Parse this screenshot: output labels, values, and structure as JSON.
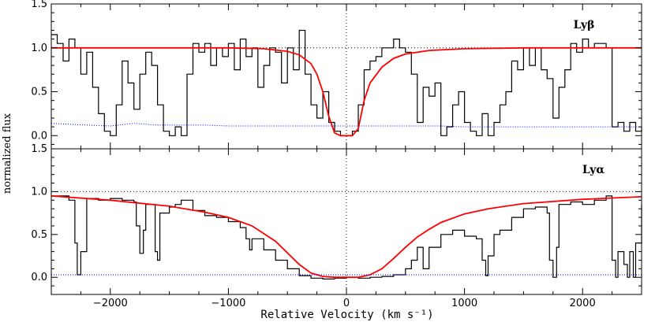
{
  "chart_data": [
    {
      "type": "line",
      "panel_label": "Lyβ",
      "xlim": [
        -2500,
        2500
      ],
      "ylim": [
        -0.15,
        1.5
      ],
      "y_ticks": [
        0.0,
        0.5,
        1.0,
        1.5
      ],
      "y_tick_labels": [
        "0.0",
        "0.5",
        "1.0",
        "1.5"
      ],
      "reference_lines": {
        "horizontal": 1.0,
        "vertical": 0
      },
      "series": [
        {
          "style": "black-histogram",
          "x": [
            -2500,
            -2450,
            -2400,
            -2350,
            -2300,
            -2250,
            -2200,
            -2150,
            -2100,
            -2050,
            -2000,
            -1950,
            -1900,
            -1850,
            -1800,
            -1750,
            -1700,
            -1650,
            -1600,
            -1550,
            -1500,
            -1450,
            -1400,
            -1350,
            -1300,
            -1250,
            -1200,
            -1150,
            -1100,
            -1050,
            -1000,
            -950,
            -900,
            -850,
            -800,
            -750,
            -700,
            -650,
            -600,
            -550,
            -500,
            -450,
            -400,
            -350,
            -300,
            -250,
            -200,
            -150,
            -100,
            -50,
            0,
            50,
            100,
            150,
            200,
            250,
            300,
            350,
            400,
            450,
            500,
            550,
            600,
            650,
            700,
            750,
            800,
            850,
            900,
            950,
            1000,
            1050,
            1100,
            1150,
            1200,
            1250,
            1300,
            1350,
            1400,
            1450,
            1500,
            1550,
            1600,
            1650,
            1700,
            1750,
            1800,
            1850,
            1900,
            1950,
            2000,
            2050,
            2100,
            2150,
            2200,
            2250,
            2300,
            2350,
            2400,
            2450,
            2500
          ],
          "y": [
            1.15,
            1.05,
            0.85,
            1.1,
            1.0,
            0.7,
            0.95,
            0.55,
            0.25,
            0.05,
            0.0,
            0.35,
            0.85,
            0.6,
            0.3,
            0.7,
            0.95,
            0.8,
            0.35,
            0.05,
            0.0,
            0.1,
            0.0,
            0.7,
            1.05,
            0.95,
            1.05,
            0.8,
            1.0,
            0.9,
            1.05,
            0.75,
            1.1,
            0.9,
            1.0,
            0.55,
            0.8,
            1.0,
            0.95,
            0.6,
            1.0,
            0.75,
            1.2,
            0.7,
            0.35,
            0.2,
            0.5,
            0.15,
            0.05,
            0.0,
            0.0,
            0.05,
            0.35,
            0.75,
            0.85,
            0.9,
            1.0,
            1.0,
            1.1,
            1.0,
            0.95,
            0.7,
            0.15,
            0.55,
            0.45,
            0.6,
            0.0,
            0.1,
            0.35,
            0.5,
            0.15,
            0.05,
            0.0,
            0.25,
            0.0,
            0.15,
            0.35,
            0.5,
            0.85,
            0.75,
            1.0,
            0.8,
            1.0,
            0.75,
            0.65,
            0.2,
            0.55,
            0.75,
            1.05,
            0.95,
            1.1,
            1.0,
            1.05,
            1.05,
            1.0,
            0.1,
            0.15,
            0.05,
            0.15,
            0.05,
            0.1
          ]
        },
        {
          "style": "red-fit",
          "x": [
            -2500,
            -1000,
            -700,
            -500,
            -400,
            -300,
            -250,
            -200,
            -150,
            -100,
            -50,
            0,
            50,
            100,
            150,
            200,
            300,
            400,
            500,
            700,
            1000,
            1500,
            2500
          ],
          "y": [
            1.0,
            1.0,
            0.99,
            0.96,
            0.92,
            0.82,
            0.7,
            0.5,
            0.22,
            0.03,
            0.0,
            0.0,
            0.0,
            0.08,
            0.4,
            0.6,
            0.78,
            0.88,
            0.93,
            0.97,
            0.99,
            1.0,
            1.0
          ]
        },
        {
          "style": "blue-error",
          "x": [
            -2500,
            -2200,
            -2000,
            -1800,
            -1600,
            -1400,
            -1200,
            -1000,
            -800,
            -600,
            -400,
            -200,
            0,
            200,
            400,
            600,
            800,
            1000,
            1200,
            1400,
            1600,
            1800,
            2000,
            2200,
            2500
          ],
          "y": [
            0.14,
            0.12,
            0.11,
            0.14,
            0.12,
            0.12,
            0.12,
            0.11,
            0.11,
            0.11,
            0.11,
            0.11,
            0.11,
            0.11,
            0.11,
            0.11,
            0.11,
            0.1,
            0.1,
            0.1,
            0.1,
            0.1,
            0.1,
            0.1,
            0.1
          ]
        }
      ]
    },
    {
      "type": "line",
      "panel_label": "Lyα",
      "xlim": [
        -2500,
        2500
      ],
      "ylim": [
        -0.2,
        1.5
      ],
      "y_ticks": [
        0.0,
        0.5,
        1.0,
        1.5
      ],
      "y_tick_labels": [
        "0.0",
        "0.5",
        "1.0",
        "1.5"
      ],
      "reference_lines": {
        "horizontal": 1.0,
        "vertical": 0
      },
      "series": [
        {
          "style": "black-histogram",
          "x": [
            -2500,
            -2400,
            -2350,
            -2300,
            -2280,
            -2250,
            -2200,
            -2100,
            -2000,
            -1900,
            -1800,
            -1780,
            -1750,
            -1720,
            -1700,
            -1650,
            -1620,
            -1600,
            -1580,
            -1500,
            -1450,
            -1400,
            -1300,
            -1200,
            -1100,
            -1000,
            -900,
            -850,
            -820,
            -800,
            -700,
            -600,
            -500,
            -400,
            -300,
            -200,
            -100,
            0,
            100,
            200,
            300,
            400,
            500,
            550,
            600,
            650,
            700,
            800,
            900,
            1000,
            1100,
            1150,
            1180,
            1200,
            1250,
            1300,
            1400,
            1500,
            1600,
            1700,
            1720,
            1750,
            1780,
            1800,
            1900,
            2000,
            2100,
            2200,
            2250,
            2280,
            2300,
            2350,
            2380,
            2400,
            2430,
            2450,
            2500
          ],
          "y": [
            0.95,
            0.95,
            0.9,
            0.4,
            0.03,
            0.3,
            0.92,
            0.9,
            0.92,
            0.9,
            0.88,
            0.6,
            0.28,
            0.55,
            0.85,
            0.85,
            0.3,
            0.2,
            0.75,
            0.82,
            0.85,
            0.9,
            0.78,
            0.72,
            0.7,
            0.65,
            0.58,
            0.45,
            0.32,
            0.45,
            0.32,
            0.2,
            0.1,
            0.02,
            -0.01,
            -0.02,
            -0.01,
            0.0,
            -0.01,
            0.0,
            0.01,
            0.03,
            0.1,
            0.2,
            0.35,
            0.1,
            0.35,
            0.5,
            0.55,
            0.48,
            0.45,
            0.2,
            0.02,
            0.25,
            0.5,
            0.55,
            0.7,
            0.8,
            0.82,
            0.75,
            0.2,
            0.0,
            0.35,
            0.85,
            0.88,
            0.85,
            0.9,
            0.95,
            0.2,
            0.0,
            0.3,
            0.15,
            0.0,
            0.3,
            0.0,
            0.4,
            0.85
          ]
        },
        {
          "style": "red-fit",
          "x": [
            -2500,
            -2000,
            -1500,
            -1200,
            -1000,
            -800,
            -600,
            -400,
            -300,
            -200,
            -100,
            0,
            100,
            200,
            300,
            400,
            500,
            600,
            700,
            800,
            1000,
            1200,
            1500,
            2000,
            2500
          ],
          "y": [
            0.95,
            0.9,
            0.83,
            0.76,
            0.7,
            0.6,
            0.42,
            0.15,
            0.05,
            0.01,
            0.0,
            0.0,
            0.0,
            0.03,
            0.1,
            0.22,
            0.35,
            0.47,
            0.56,
            0.64,
            0.74,
            0.8,
            0.86,
            0.91,
            0.94
          ]
        },
        {
          "style": "blue-error",
          "x": [
            -2500,
            -2000,
            -1500,
            -1000,
            -500,
            0,
            500,
            1000,
            1500,
            2000,
            2500
          ],
          "y": [
            0.03,
            0.03,
            0.03,
            0.03,
            0.03,
            0.03,
            0.03,
            0.03,
            0.03,
            0.03,
            0.03
          ]
        }
      ]
    }
  ],
  "x_axis": {
    "label": "Relative Velocity (km s⁻¹)",
    "ticks": [
      -2000,
      -1000,
      0,
      1000,
      2000
    ],
    "tick_labels": [
      "−2000",
      "−1000",
      "0",
      "1000",
      "2000"
    ]
  },
  "y_axis": {
    "label": "normalized flux"
  },
  "colors": {
    "spectrum": "#000000",
    "fit": "#ff0000",
    "error": "#0000ff",
    "reference": "#000000"
  }
}
